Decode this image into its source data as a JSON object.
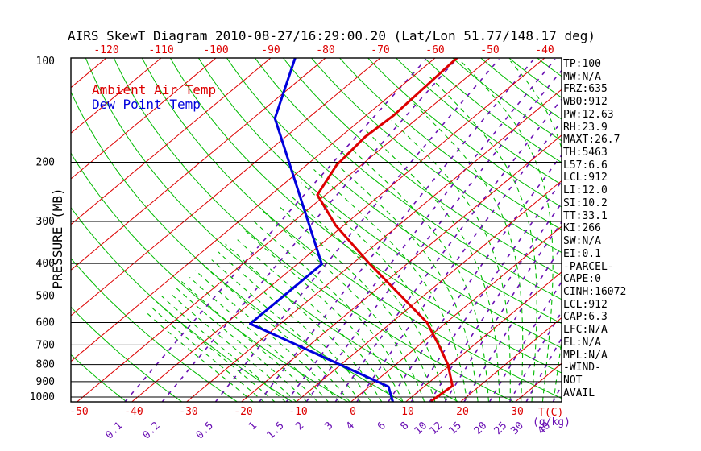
{
  "title": "AIRS SkewT Diagram 2010-08-27/16:29:00.20 (Lat/Lon 51.77/148.17 deg)",
  "legend": {
    "ambient": "Ambient Air Temp",
    "dew": "Dew Point Temp"
  },
  "axis": {
    "pressure_label": "PRESSURE (MB)",
    "pressure_ticks": [
      100,
      200,
      300,
      400,
      500,
      600,
      700,
      800,
      900,
      1000
    ],
    "top_temp_ticks": [
      -120,
      -110,
      -100,
      -90,
      -80,
      -70,
      -60,
      -50,
      -40
    ],
    "bottom_temp_ticks": [
      -50,
      -40,
      -30,
      -20,
      -10,
      0,
      10,
      20,
      30
    ],
    "mixing_ratio_ticks": [
      0.1,
      0.2,
      0.5,
      1,
      1.5,
      2,
      3,
      4,
      6,
      8,
      10,
      12,
      15,
      20,
      25,
      30,
      40
    ],
    "temp_unit": "T(C)",
    "mixing_unit": "(g/kg)"
  },
  "readouts": [
    "TP:100",
    "MW:N/A",
    "FRZ:635",
    "WB0:912",
    "PW:12.63",
    "RH:23.9",
    "MAXT:26.7",
    "TH:5463",
    "L57:6.6",
    "LCL:912",
    "LI:12.0",
    "SI:10.2",
    "TT:33.1",
    "KI:266",
    "SW:N/A",
    "EI:0.1",
    "-PARCEL-",
    "CAPE:0",
    "CINH:16072",
    "LCL:912",
    "CAP:6.3",
    "LFC:N/A",
    "EL:N/A",
    "MPL:N/A",
    "-WIND-",
    "NOT",
    "AVAIL"
  ],
  "colors": {
    "isotherm": "#dd0000",
    "dry_adiabat": "#00bb00",
    "moist_adiabat": "#00bb00",
    "mixing_ratio": "#6a10b4",
    "isobar": "#000000",
    "frame": "#000000",
    "temp_profile": "#dd0000",
    "dew_profile": "#0000dd",
    "top_tick_text": "#dd0000",
    "bottom_tick_text": "#dd0000",
    "mixing_text": "#6a10b4",
    "pressure_text": "#000000"
  },
  "chart_data": {
    "type": "line",
    "title": "AIRS SkewT Diagram 2010-08-27/16:29:00.20 (Lat/Lon 51.77/148.17 deg)",
    "xlabel": "T(C)",
    "ylabel": "PRESSURE (MB)",
    "y_scale": "log",
    "ylim_mb": [
      100,
      1035
    ],
    "xlim_surface_C": [
      -52,
      38
    ],
    "skew": "isotherms slope up-right ~45deg",
    "grid": {
      "isobars_mb": [
        200,
        300,
        400,
        500,
        600,
        700,
        800,
        900,
        1000
      ],
      "isotherms_C": {
        "min": -120,
        "max": 40,
        "step": 10
      },
      "dry_adiabats_K": {
        "min": 210,
        "max": 470,
        "step": 10
      },
      "moist_adiabats_C": {
        "min": -20,
        "max": 36,
        "step": 2
      },
      "mixing_ratio_g_kg": [
        0.1,
        0.2,
        0.5,
        1,
        1.5,
        2,
        3,
        4,
        6,
        8,
        10,
        12,
        15,
        20,
        25,
        30,
        40
      ]
    },
    "series": [
      {
        "name": "Ambient Air Temp",
        "color": "#dd0000",
        "points_p_mb_t_c": [
          [
            98,
            -56
          ],
          [
            145,
            -55
          ],
          [
            168,
            -55.5
          ],
          [
            204,
            -54.5
          ],
          [
            250,
            -51.5
          ],
          [
            308,
            -41.5
          ],
          [
            400,
            -27
          ],
          [
            600,
            -3.5
          ],
          [
            707,
            4
          ],
          [
            800,
            9.5
          ],
          [
            926,
            15
          ],
          [
            1025,
            14.5
          ]
        ]
      },
      {
        "name": "Dew Point Temp",
        "color": "#0000dd",
        "points_p_mb_t_c": [
          [
            98,
            -85.5
          ],
          [
            148,
            -76
          ],
          [
            402,
            -35.5
          ],
          [
            605,
            -35.5
          ],
          [
            931,
            3.5
          ],
          [
            1030,
            7.5
          ]
        ]
      }
    ]
  }
}
